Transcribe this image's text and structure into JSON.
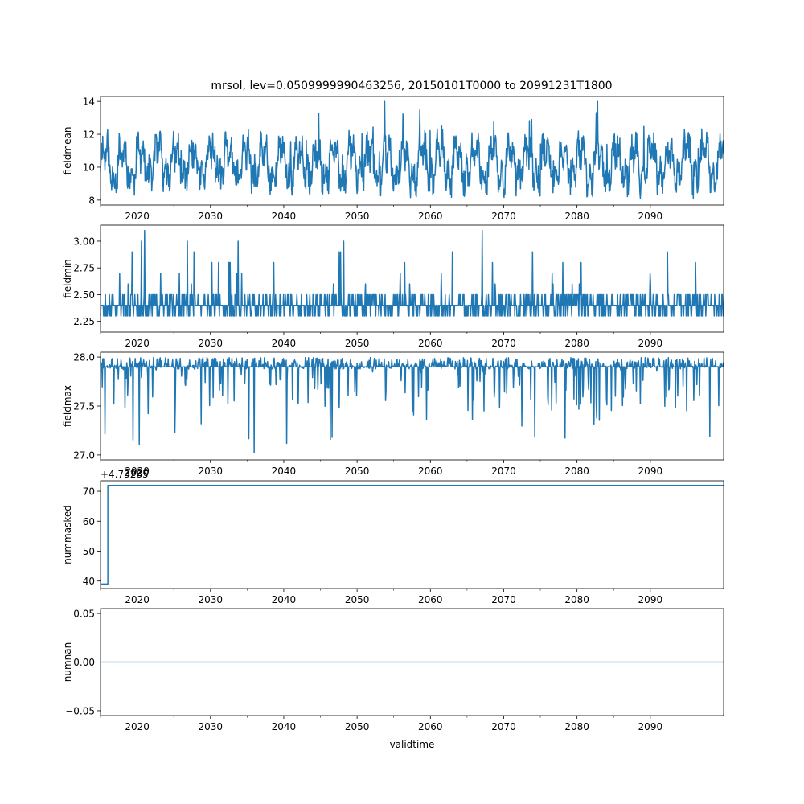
{
  "figure_title": "mrsol, lev=0.0509999990463256, 20150101T0000 to 20991231T1800",
  "line_color": "#1f77b4",
  "xlabel": "validtime",
  "chart_data": [
    {
      "type": "line",
      "name": "fieldmean",
      "title": "mrsol, lev=0.0509999990463256, 20150101T0000 to 20991231T1800",
      "ylabel": "fieldmean",
      "xlabel": "",
      "xlim": [
        2015,
        2100
      ],
      "ylim": [
        7.7,
        14.3
      ],
      "xticks": [
        2020,
        2030,
        2040,
        2050,
        2060,
        2070,
        2080,
        2090
      ],
      "xticklabels": [
        "2020",
        "2030",
        "2040",
        "2050",
        "2060",
        "2070",
        "2080",
        "2090"
      ],
      "yticks": [
        8,
        10,
        12,
        14
      ],
      "yticklabels": [
        "8",
        "10",
        "12",
        "14"
      ],
      "offset_text": "",
      "series": [
        {
          "name": "fieldmean",
          "kind": "noise",
          "base": 10.2,
          "amp": 1.6,
          "spike": 3.7,
          "lo": 8.0,
          "hi": 14.0,
          "seed": 11,
          "n": 1400
        }
      ]
    },
    {
      "type": "line",
      "name": "fieldmin",
      "title": "",
      "ylabel": "fieldmin",
      "xlabel": "",
      "xlim": [
        2015,
        2100
      ],
      "ylim": [
        2.15,
        3.15
      ],
      "xticks": [
        2020,
        2030,
        2040,
        2050,
        2060,
        2070,
        2080,
        2090
      ],
      "xticklabels": [
        "2020",
        "2030",
        "2040",
        "2050",
        "2060",
        "2070",
        "2080",
        "2090"
      ],
      "yticks": [
        2.25,
        2.5,
        2.75,
        3.0
      ],
      "yticklabels": [
        "2.25",
        "2.50",
        "2.75",
        "3.00"
      ],
      "offset_text": "",
      "series": [
        {
          "name": "fieldmin",
          "kind": "stepnoise",
          "base": 2.4,
          "amp": 0.1,
          "spike": 0.7,
          "lo": 2.2,
          "hi": 3.1,
          "seed": 23,
          "n": 1400,
          "step": 0.1
        }
      ]
    },
    {
      "type": "line",
      "name": "fieldmax",
      "title": "",
      "ylabel": "fieldmax",
      "xlabel": "",
      "xlim": [
        2015,
        2100
      ],
      "ylim": [
        26.95,
        28.05
      ],
      "xticks": [
        2020,
        2030,
        2040,
        2050,
        2060,
        2070,
        2080,
        2090
      ],
      "xticklabels": [
        "2020",
        "2030",
        "2040",
        "2050",
        "2060",
        "2070",
        "2080",
        "2090"
      ],
      "yticks": [
        27.0,
        27.5,
        28.0
      ],
      "yticklabels": [
        "27.0",
        "27.5",
        "28.0"
      ],
      "offset_text": "",
      "series": [
        {
          "name": "fieldmax",
          "kind": "downspike",
          "base": 27.9,
          "amp": 0.12,
          "spike": 0.9,
          "lo": 27.0,
          "hi": 28.0,
          "seed": 37,
          "n": 1400
        }
      ]
    },
    {
      "type": "line",
      "name": "nummasked",
      "title": "",
      "ylabel": "nummasked",
      "xlabel": "",
      "xlim": [
        2015,
        2100
      ],
      "ylim": [
        37.5,
        73.5
      ],
      "xticks": [
        2020,
        2030,
        2040,
        2050,
        2060,
        2070,
        2080,
        2090
      ],
      "xticklabels": [
        "2020",
        "2030",
        "2040",
        "2050",
        "2060",
        "2070",
        "2080",
        "2090"
      ],
      "yticks": [
        40,
        50,
        60,
        70
      ],
      "yticklabels": [
        "40",
        "50",
        "60",
        "70"
      ],
      "offset_text": "+4.73285",
      "top_ticklabel": "2020",
      "series": [
        {
          "name": "nummasked",
          "kind": "step",
          "x": [
            2015,
            2016,
            2016,
            2100
          ],
          "y": [
            39,
            39,
            72,
            72
          ]
        }
      ]
    },
    {
      "type": "line",
      "name": "numnan",
      "title": "",
      "ylabel": "numnan",
      "xlabel": "validtime",
      "xlim": [
        2015,
        2100
      ],
      "ylim": [
        -0.055,
        0.055
      ],
      "xticks": [
        2020,
        2030,
        2040,
        2050,
        2060,
        2070,
        2080,
        2090
      ],
      "xticklabels": [
        "2020",
        "2030",
        "2040",
        "2050",
        "2060",
        "2070",
        "2080",
        "2090"
      ],
      "yticks": [
        -0.05,
        0.0,
        0.05
      ],
      "yticklabels": [
        "−0.05",
        "0.00",
        "0.05"
      ],
      "offset_text": "",
      "series": [
        {
          "name": "numnan",
          "kind": "step",
          "x": [
            2015,
            2100
          ],
          "y": [
            0,
            0
          ]
        }
      ]
    }
  ]
}
